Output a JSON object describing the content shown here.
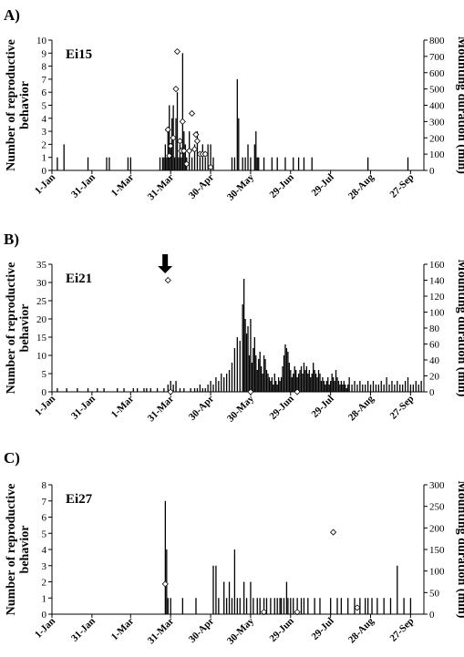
{
  "chart_data": [
    {
      "type": "bar",
      "panel_letter": "A)",
      "tag": "Ei15",
      "ylabel": "Number of reproductive behavior",
      "y2label": "Mounting duration (min)",
      "ylim": [
        0,
        10
      ],
      "yticks": [
        0,
        1,
        2,
        3,
        4,
        5,
        6,
        7,
        8,
        9,
        10
      ],
      "y2lim": [
        0,
        800
      ],
      "y2ticks": [
        0,
        100,
        200,
        300,
        400,
        500,
        600,
        700,
        800
      ],
      "x_day_range": [
        1,
        280
      ],
      "xtick_labels": [
        "1-Jan",
        "31-Jan",
        "1-Mar",
        "31-Mar",
        "30-Apr",
        "30-May",
        "29-Jun",
        "29-Jul",
        "28-Aug",
        "27-Sep"
      ],
      "xtick_days": [
        1,
        31,
        60,
        90,
        120,
        150,
        180,
        210,
        240,
        270
      ],
      "bars": [
        [
          5,
          1
        ],
        [
          10,
          2
        ],
        [
          28,
          1
        ],
        [
          42,
          1
        ],
        [
          44,
          1
        ],
        [
          58,
          1
        ],
        [
          60,
          1
        ],
        [
          82,
          1
        ],
        [
          84,
          1
        ],
        [
          85,
          1
        ],
        [
          86,
          2
        ],
        [
          87,
          1
        ],
        [
          88,
          3
        ],
        [
          89,
          5
        ],
        [
          90,
          2
        ],
        [
          91,
          4
        ],
        [
          92,
          5
        ],
        [
          93,
          1
        ],
        [
          94,
          4
        ],
        [
          95,
          6
        ],
        [
          96,
          1
        ],
        [
          97,
          2
        ],
        [
          98,
          1
        ],
        [
          99,
          9
        ],
        [
          100,
          3
        ],
        [
          101,
          2
        ],
        [
          102,
          1
        ],
        [
          104,
          3
        ],
        [
          106,
          1
        ],
        [
          108,
          2
        ],
        [
          110,
          3
        ],
        [
          112,
          1
        ],
        [
          114,
          2
        ],
        [
          116,
          1
        ],
        [
          118,
          2
        ],
        [
          120,
          2
        ],
        [
          122,
          1
        ],
        [
          136,
          1
        ],
        [
          138,
          1
        ],
        [
          140,
          7
        ],
        [
          141,
          4
        ],
        [
          144,
          1
        ],
        [
          146,
          1
        ],
        [
          148,
          2
        ],
        [
          150,
          1
        ],
        [
          153,
          2
        ],
        [
          154,
          3
        ],
        [
          155,
          1
        ],
        [
          156,
          1
        ],
        [
          160,
          1
        ],
        [
          166,
          1
        ],
        [
          170,
          1
        ],
        [
          176,
          1
        ],
        [
          182,
          1
        ],
        [
          186,
          1
        ],
        [
          190,
          1
        ],
        [
          196,
          1
        ],
        [
          238,
          1
        ],
        [
          268,
          1
        ]
      ],
      "points": [
        [
          88,
          250
        ],
        [
          89,
          90
        ],
        [
          90,
          150
        ],
        [
          92,
          200
        ],
        [
          94,
          500
        ],
        [
          95,
          730
        ],
        [
          97,
          180
        ],
        [
          98,
          120
        ],
        [
          99,
          300
        ],
        [
          100,
          120
        ],
        [
          102,
          40
        ],
        [
          104,
          120
        ],
        [
          106,
          350
        ],
        [
          108,
          130
        ],
        [
          109,
          220
        ],
        [
          110,
          180
        ],
        [
          112,
          100
        ],
        [
          114,
          100
        ],
        [
          116,
          100
        ],
        [
          120,
          20
        ]
      ]
    },
    {
      "type": "bar",
      "panel_letter": "B)",
      "tag": "Ei21",
      "ylabel": "Number of reproductive behavior",
      "y2label": "Mounting duration (min)",
      "ylim": [
        0,
        35
      ],
      "yticks": [
        0,
        5,
        10,
        15,
        20,
        25,
        30,
        35
      ],
      "y2lim": [
        0,
        160
      ],
      "y2ticks": [
        0,
        20,
        40,
        60,
        80,
        100,
        120,
        140,
        160
      ],
      "x_day_range": [
        1,
        280
      ],
      "xtick_labels": [
        "1-Jan",
        "31-Jan",
        "1-Mar",
        "31-Mar",
        "30-Apr",
        "30-May",
        "29-Jun",
        "29-Jul",
        "28-Aug",
        "27-Sep"
      ],
      "xtick_days": [
        1,
        31,
        60,
        90,
        120,
        150,
        180,
        210,
        240,
        270
      ],
      "arrow_day": 90,
      "bars": [
        [
          5,
          1
        ],
        [
          12,
          1
        ],
        [
          20,
          1
        ],
        [
          28,
          1
        ],
        [
          35,
          1
        ],
        [
          40,
          1
        ],
        [
          50,
          1
        ],
        [
          55,
          1
        ],
        [
          62,
          1
        ],
        [
          65,
          1
        ],
        [
          70,
          1
        ],
        [
          72,
          1
        ],
        [
          75,
          1
        ],
        [
          80,
          1
        ],
        [
          85,
          1
        ],
        [
          88,
          2
        ],
        [
          90,
          3
        ],
        [
          92,
          2
        ],
        [
          94,
          3
        ],
        [
          97,
          1
        ],
        [
          100,
          1
        ],
        [
          105,
          1
        ],
        [
          108,
          1
        ],
        [
          110,
          1
        ],
        [
          112,
          2
        ],
        [
          114,
          1
        ],
        [
          116,
          1
        ],
        [
          118,
          2
        ],
        [
          120,
          3
        ],
        [
          122,
          2
        ],
        [
          124,
          4
        ],
        [
          126,
          3
        ],
        [
          128,
          5
        ],
        [
          130,
          4
        ],
        [
          132,
          5
        ],
        [
          134,
          6
        ],
        [
          136,
          8
        ],
        [
          138,
          12
        ],
        [
          140,
          15
        ],
        [
          142,
          14
        ],
        [
          144,
          24
        ],
        [
          145,
          31
        ],
        [
          146,
          20
        ],
        [
          147,
          16
        ],
        [
          148,
          18
        ],
        [
          149,
          10
        ],
        [
          150,
          20
        ],
        [
          151,
          8
        ],
        [
          152,
          12
        ],
        [
          153,
          15
        ],
        [
          154,
          10
        ],
        [
          155,
          6
        ],
        [
          156,
          9
        ],
        [
          157,
          11
        ],
        [
          158,
          7
        ],
        [
          159,
          5
        ],
        [
          160,
          10
        ],
        [
          161,
          9
        ],
        [
          162,
          6
        ],
        [
          163,
          5
        ],
        [
          164,
          4
        ],
        [
          165,
          3
        ],
        [
          166,
          4
        ],
        [
          167,
          2
        ],
        [
          168,
          5
        ],
        [
          169,
          3
        ],
        [
          170,
          2
        ],
        [
          171,
          4
        ],
        [
          172,
          3
        ],
        [
          173,
          4
        ],
        [
          174,
          7
        ],
        [
          175,
          10
        ],
        [
          176,
          13
        ],
        [
          177,
          12
        ],
        [
          178,
          11
        ],
        [
          179,
          8
        ],
        [
          180,
          6
        ],
        [
          181,
          4
        ],
        [
          182,
          5
        ],
        [
          183,
          7
        ],
        [
          184,
          6
        ],
        [
          185,
          4
        ],
        [
          186,
          5
        ],
        [
          187,
          6
        ],
        [
          188,
          7
        ],
        [
          189,
          5
        ],
        [
          190,
          8
        ],
        [
          191,
          6
        ],
        [
          192,
          7
        ],
        [
          193,
          5
        ],
        [
          194,
          6
        ],
        [
          195,
          4
        ],
        [
          196,
          5
        ],
        [
          197,
          8
        ],
        [
          198,
          6
        ],
        [
          199,
          5
        ],
        [
          200,
          4
        ],
        [
          201,
          6
        ],
        [
          202,
          5
        ],
        [
          203,
          3
        ],
        [
          204,
          4
        ],
        [
          205,
          3
        ],
        [
          206,
          2
        ],
        [
          207,
          3
        ],
        [
          208,
          4
        ],
        [
          209,
          2
        ],
        [
          210,
          3
        ],
        [
          211,
          5
        ],
        [
          212,
          4
        ],
        [
          213,
          3
        ],
        [
          214,
          6
        ],
        [
          215,
          4
        ],
        [
          216,
          3
        ],
        [
          217,
          2
        ],
        [
          218,
          3
        ],
        [
          219,
          2
        ],
        [
          220,
          3
        ],
        [
          221,
          2
        ],
        [
          222,
          1
        ],
        [
          223,
          2
        ],
        [
          224,
          4
        ],
        [
          226,
          2
        ],
        [
          228,
          3
        ],
        [
          230,
          2
        ],
        [
          232,
          3
        ],
        [
          234,
          2
        ],
        [
          236,
          2
        ],
        [
          238,
          3
        ],
        [
          240,
          2
        ],
        [
          242,
          3
        ],
        [
          244,
          2
        ],
        [
          246,
          2
        ],
        [
          248,
          3
        ],
        [
          250,
          2
        ],
        [
          252,
          4
        ],
        [
          254,
          2
        ],
        [
          256,
          3
        ],
        [
          258,
          2
        ],
        [
          260,
          3
        ],
        [
          262,
          2
        ],
        [
          264,
          2
        ],
        [
          266,
          3
        ],
        [
          268,
          4
        ],
        [
          270,
          2
        ],
        [
          272,
          2
        ],
        [
          274,
          3
        ],
        [
          276,
          2
        ],
        [
          278,
          3
        ]
      ],
      "points": [
        [
          88,
          140
        ],
        [
          90,
          0
        ],
        [
          150,
          0
        ],
        [
          185,
          0
        ]
      ]
    },
    {
      "type": "bar",
      "panel_letter": "C)",
      "tag": "Ei27",
      "ylabel": "Number of reproductive behavior",
      "y2label": "Mounting duration (min)",
      "ylim": [
        0,
        8
      ],
      "yticks": [
        0,
        1,
        2,
        3,
        4,
        5,
        6,
        7,
        8
      ],
      "y2lim": [
        0,
        300
      ],
      "y2ticks": [
        0,
        50,
        100,
        150,
        200,
        250,
        300
      ],
      "x_day_range": [
        1,
        280
      ],
      "xtick_labels": [
        "1-Jan",
        "31-Jan",
        "1-Mar",
        "31-Mar",
        "30-Apr",
        "30-May",
        "29-Jun",
        "29-Jul",
        "28-Aug",
        "27-Sep"
      ],
      "xtick_days": [
        1,
        31,
        60,
        90,
        120,
        150,
        180,
        210,
        240,
        270
      ],
      "bars": [
        [
          86,
          7
        ],
        [
          87,
          4
        ],
        [
          88,
          1
        ],
        [
          90,
          1
        ],
        [
          99,
          1
        ],
        [
          109,
          1
        ],
        [
          122,
          3
        ],
        [
          124,
          3
        ],
        [
          126,
          1
        ],
        [
          130,
          2
        ],
        [
          132,
          1
        ],
        [
          134,
          2
        ],
        [
          136,
          1
        ],
        [
          138,
          4
        ],
        [
          140,
          1
        ],
        [
          142,
          1
        ],
        [
          145,
          2
        ],
        [
          147,
          1
        ],
        [
          150,
          2
        ],
        [
          152,
          1
        ],
        [
          155,
          1
        ],
        [
          157,
          1
        ],
        [
          160,
          1
        ],
        [
          162,
          1
        ],
        [
          165,
          1
        ],
        [
          168,
          1
        ],
        [
          170,
          1
        ],
        [
          172,
          1
        ],
        [
          173,
          1
        ],
        [
          175,
          1
        ],
        [
          177,
          2
        ],
        [
          178,
          1
        ],
        [
          180,
          1
        ],
        [
          182,
          1
        ],
        [
          185,
          1
        ],
        [
          188,
          1
        ],
        [
          190,
          1
        ],
        [
          193,
          1
        ],
        [
          198,
          1
        ],
        [
          202,
          1
        ],
        [
          210,
          1
        ],
        [
          215,
          1
        ],
        [
          218,
          1
        ],
        [
          223,
          1
        ],
        [
          228,
          1
        ],
        [
          232,
          1
        ],
        [
          236,
          1
        ],
        [
          238,
          1
        ],
        [
          241,
          1
        ],
        [
          245,
          1
        ],
        [
          250,
          1
        ],
        [
          255,
          1
        ],
        [
          260,
          3
        ],
        [
          265,
          1
        ],
        [
          270,
          1
        ]
      ],
      "points": [
        [
          86,
          70
        ],
        [
          160,
          5
        ],
        [
          185,
          5
        ],
        [
          212,
          190
        ],
        [
          230,
          15
        ]
      ]
    }
  ]
}
